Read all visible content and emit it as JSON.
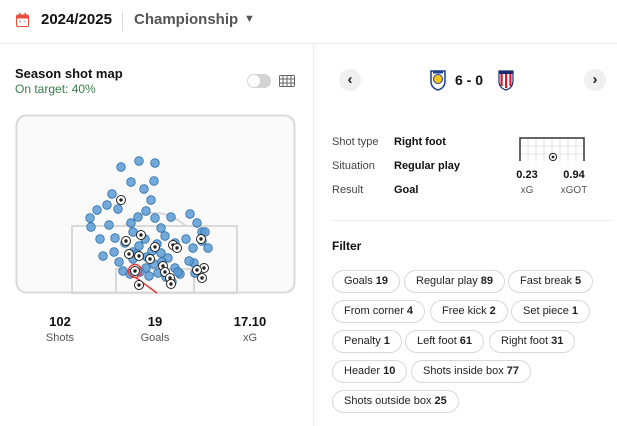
{
  "header": {
    "season": "2024/2025",
    "league": "Championship",
    "icons": {
      "calendar": "calendar-icon",
      "caret": "chevron-down-icon"
    }
  },
  "shotmap": {
    "title": "Season shot map",
    "subtitle": "On target: 40%",
    "stats": [
      {
        "value": "102",
        "label": "Shots"
      },
      {
        "value": "19",
        "label": "Goals"
      },
      {
        "value": "17.10",
        "label": "xG"
      }
    ]
  },
  "match": {
    "prev_icon": "‹",
    "next_icon": "›",
    "score": "6 - 0",
    "home_crest": "leeds-crest-icon",
    "away_crest": "stoke-crest-icon"
  },
  "shot_detail": {
    "rows": [
      {
        "key": "Shot type",
        "value": "Right foot"
      },
      {
        "key": "Situation",
        "value": "Regular play"
      },
      {
        "key": "Result",
        "value": "Goal"
      }
    ],
    "xg": {
      "value": "0.23",
      "label": "xG"
    },
    "xgot": {
      "value": "0.94",
      "label": "xGOT"
    }
  },
  "filter": {
    "title": "Filter",
    "chips": [
      {
        "label": "Goals",
        "count": "19"
      },
      {
        "label": "Regular play",
        "count": "89"
      },
      {
        "label": "Fast break",
        "count": "5"
      },
      {
        "label": "From corner",
        "count": "4"
      },
      {
        "label": "Free kick",
        "count": "2"
      },
      {
        "label": "Set piece",
        "count": "1"
      },
      {
        "label": "Penalty",
        "count": "1"
      },
      {
        "label": "Left foot",
        "count": "61"
      },
      {
        "label": "Right foot",
        "count": "31"
      },
      {
        "label": "Header",
        "count": "10"
      },
      {
        "label": "Shots inside box",
        "count": "77"
      },
      {
        "label": "Shots outside box",
        "count": "25"
      }
    ]
  },
  "colors": {
    "shot_dot": "#5b9bd5",
    "shot_dot_stroke": "#2f6fa8",
    "pitch_line": "#d9d9d9",
    "selected_line": "#e03a3a",
    "on_target_text": "#3a7c4a"
  }
}
